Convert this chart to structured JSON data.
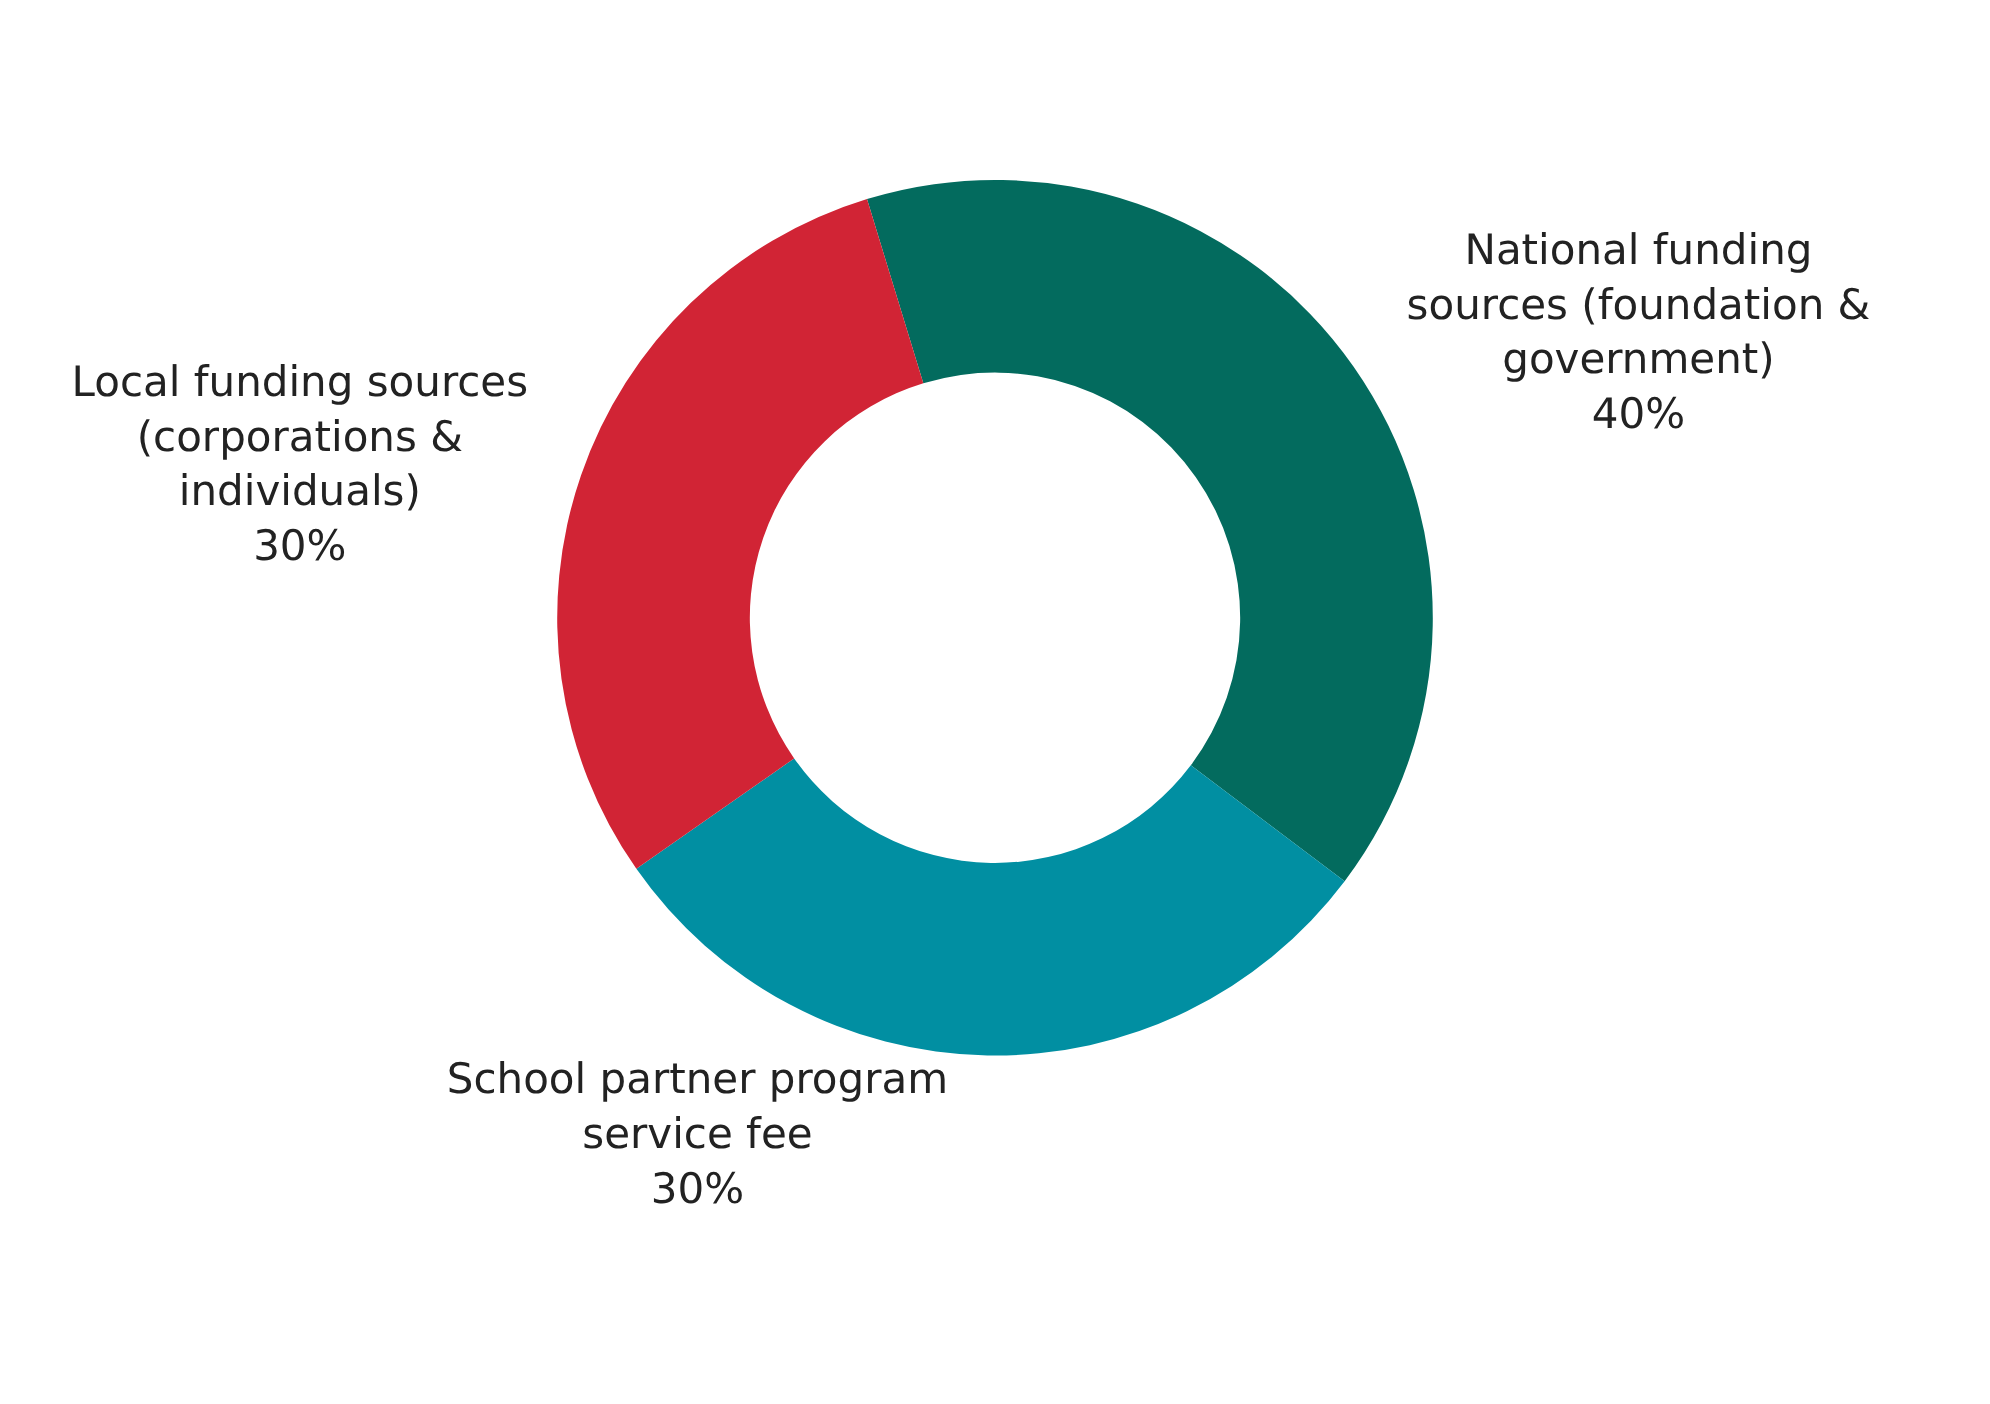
{
  "chart_data": {
    "type": "donut",
    "categories": [
      "National funding sources (foundation & government)",
      "School partner program service fee",
      "Local funding sources (corporations & individuals)"
    ],
    "values": [
      40,
      30,
      30
    ],
    "value_labels": [
      "40%",
      "30%",
      "30%"
    ],
    "colors": [
      "#036b5e",
      "#018fa2",
      "#d12435"
    ],
    "legend": false
  }
}
